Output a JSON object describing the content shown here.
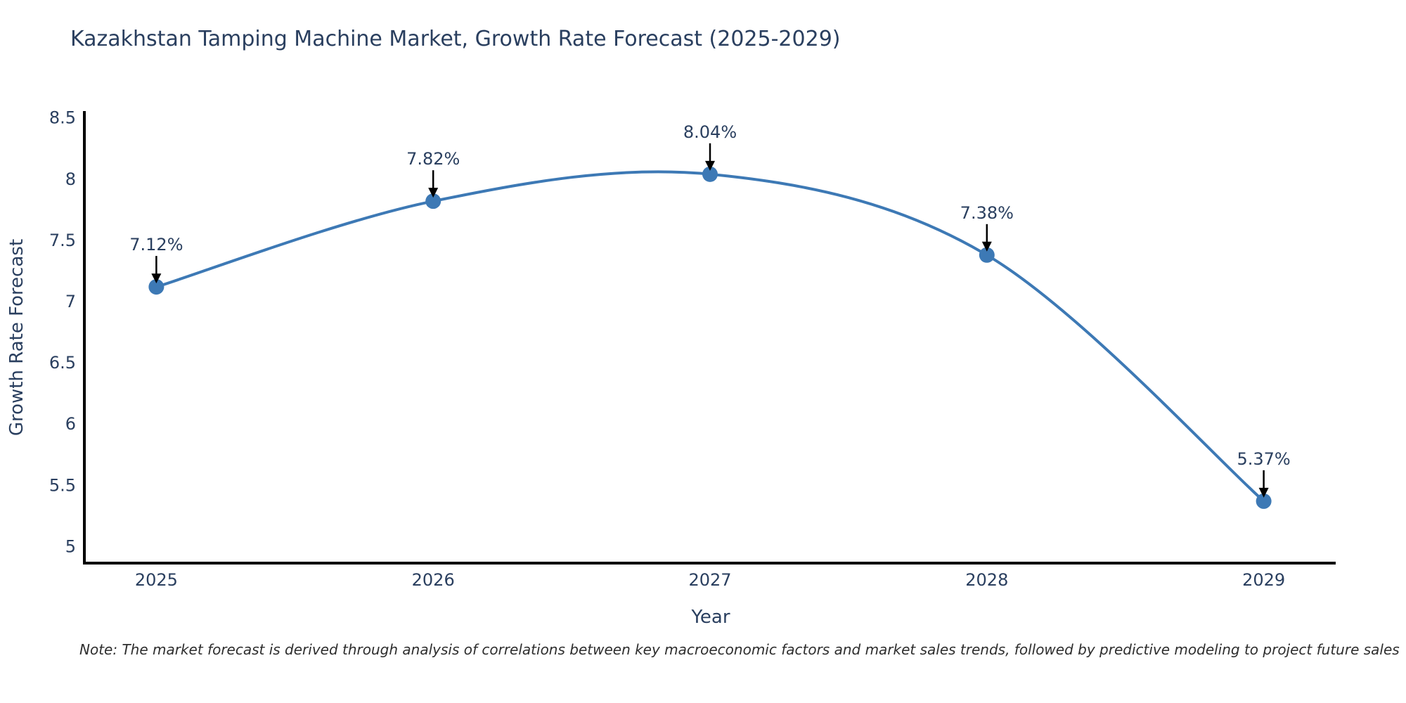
{
  "title": "Kazakhstan Tamping Machine Market, Growth Rate Forecast (2025-2029)",
  "note": "Note: The market forecast is derived through analysis of correlations between key macroeconomic factors and market sales trends, followed by predictive modeling to project future sales",
  "chart_data": {
    "type": "line",
    "title": "Kazakhstan Tamping Machine Market, Growth Rate Forecast (2025-2029)",
    "x": [
      2025,
      2026,
      2027,
      2028,
      2029
    ],
    "categories": [
      "2025",
      "2026",
      "2027",
      "2028",
      "2029"
    ],
    "series": [
      {
        "name": "Growth Rate Forecast",
        "values": [
          7.12,
          7.82,
          8.04,
          7.38,
          5.37
        ],
        "point_labels": [
          "7.12%",
          "7.82%",
          "8.04%",
          "7.38%",
          "5.37%"
        ]
      }
    ],
    "xlabel": "Year",
    "ylabel": "Growth Rate Forecast",
    "xlim": [
      2024.74,
      2029.26
    ],
    "ylim": [
      4.87,
      8.55
    ],
    "yticks": [
      5,
      5.5,
      6,
      6.5,
      7,
      7.5,
      8,
      8.5
    ],
    "ytick_labels": [
      "5",
      "5.5",
      "6",
      "6.5",
      "7",
      "7.5",
      "8",
      "8.5"
    ],
    "line_shape": "spline",
    "grid": false,
    "legend": "none",
    "colors": {
      "line": "#3d79b5",
      "marker": "#3d79b5",
      "axis_line": "#000000",
      "text": "#2a3f5f",
      "annotation_arrow": "#000000",
      "background": "#ffffff"
    }
  }
}
